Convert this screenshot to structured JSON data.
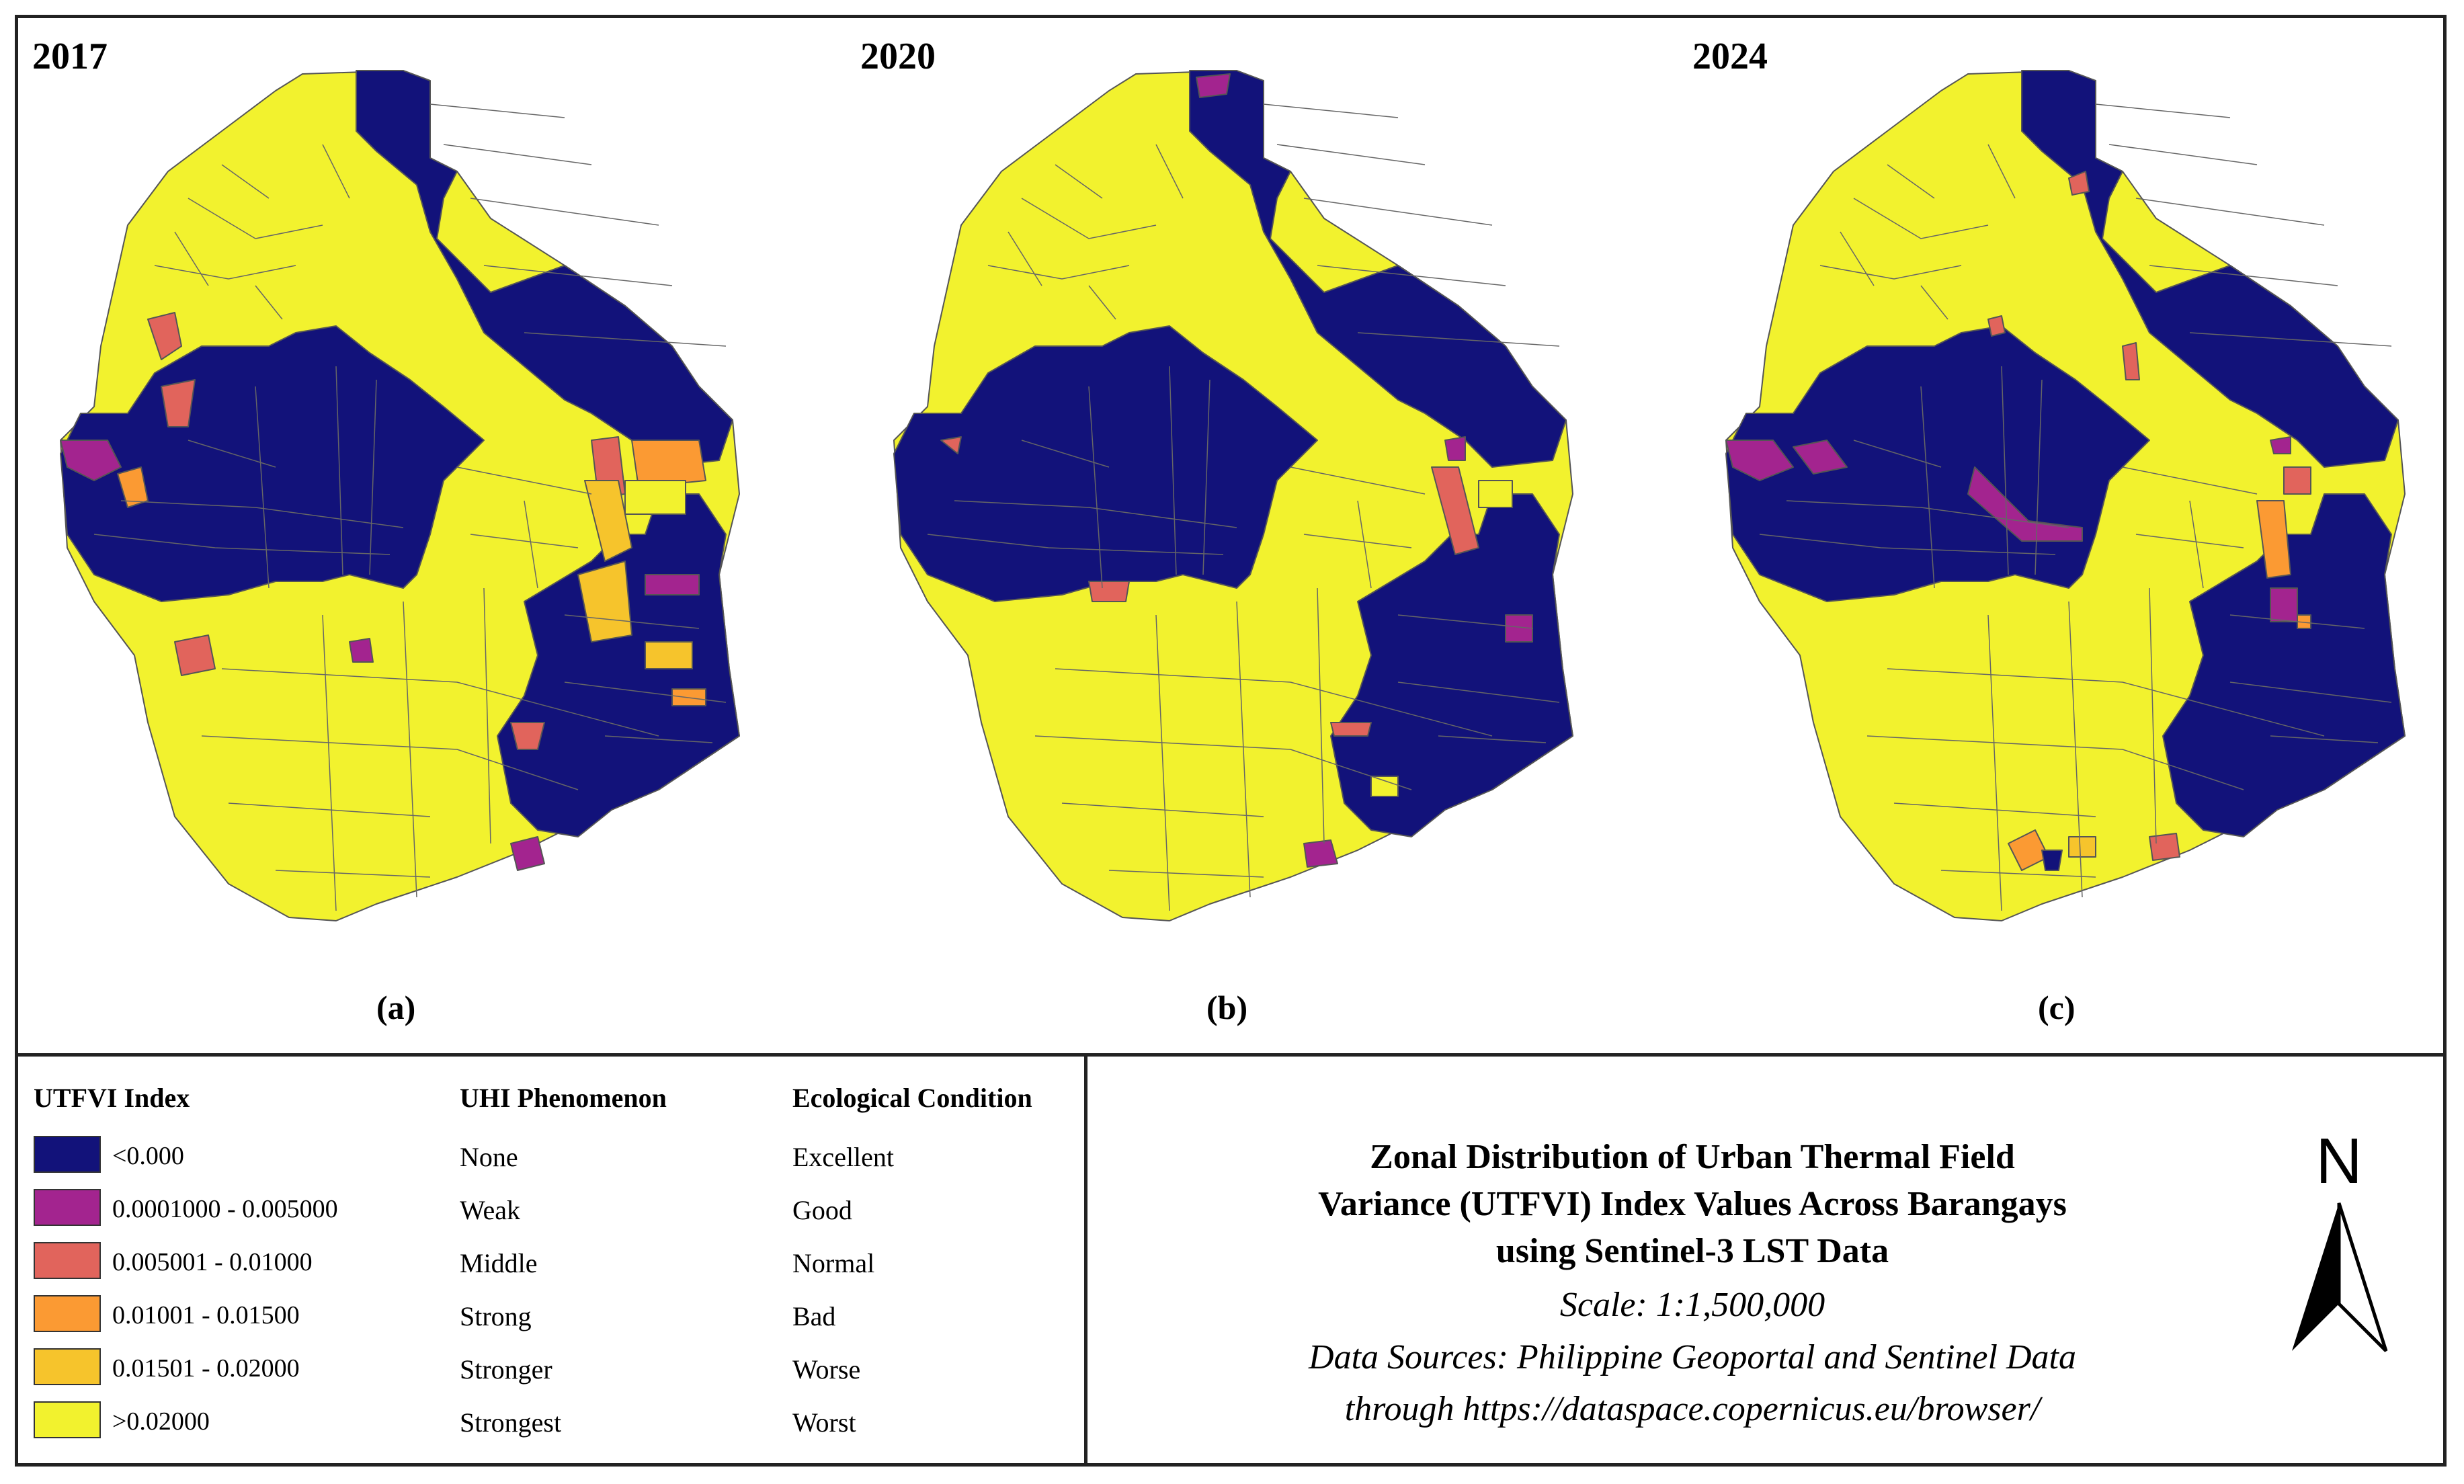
{
  "panels": [
    {
      "year": "2017",
      "label": "(a)"
    },
    {
      "year": "2020",
      "label": "(b)"
    },
    {
      "year": "2024",
      "label": "(c)"
    }
  ],
  "legend": {
    "headers": {
      "index": "UTFVI Index",
      "uhi": "UHI Phenomenon",
      "eco": "Ecological Condition"
    },
    "rows": [
      {
        "range": "<0.000",
        "uhi": "None",
        "eco": "Excellent",
        "color": "#12127a"
      },
      {
        "range": "0.0001000 - 0.005000",
        "uhi": "Weak",
        "eco": "Good",
        "color": "#a3248f"
      },
      {
        "range": "0.005001 - 0.01000",
        "uhi": "Middle",
        "eco": "Normal",
        "color": "#e1645c"
      },
      {
        "range": "0.01001 - 0.01500",
        "uhi": "Strong",
        "eco": "Bad",
        "color": "#fb9a33"
      },
      {
        "range": "0.01501 - 0.02000",
        "uhi": "Stronger",
        "eco": "Worse",
        "color": "#f6c42c"
      },
      {
        "range": ">0.02000",
        "uhi": "Strongest",
        "eco": "Worst",
        "color": "#f2f22e"
      }
    ]
  },
  "title": {
    "line1": "Zonal Distribution of Urban Thermal Field",
    "line2": "Variance (UTFVI) Index Values Across Barangays",
    "line3": "using Sentinel-3 LST Data"
  },
  "info": {
    "scale": "Scale: 1:1,500,000",
    "sources1": "Data Sources: Philippine Geoportal and Sentinel Data",
    "sources2": "through https://dataspace.copernicus.eu/browser/"
  },
  "north_label": "N"
}
